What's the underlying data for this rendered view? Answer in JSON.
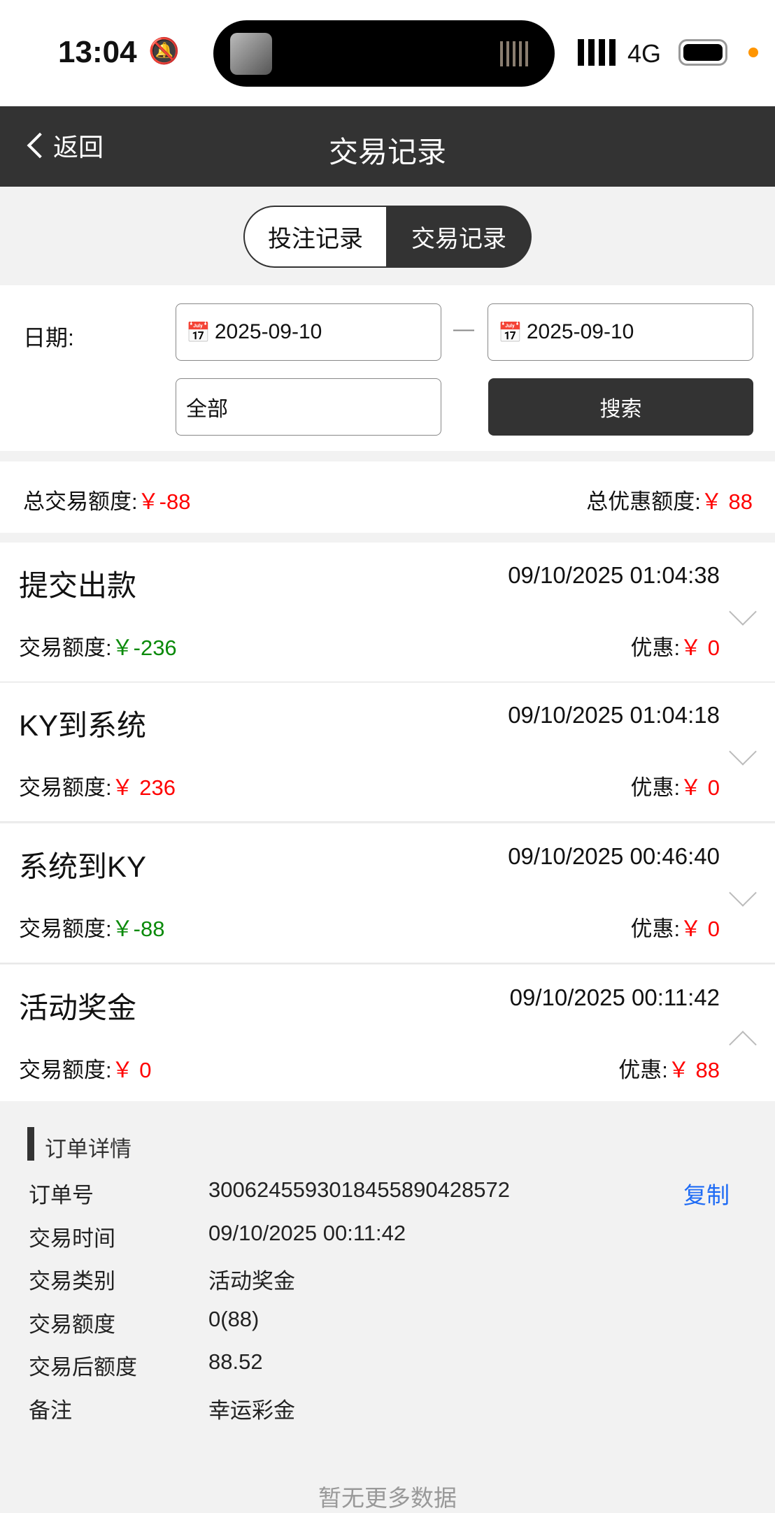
{
  "status_bar": {
    "time": "13:04",
    "network": "4G",
    "accent": "#ff9500"
  },
  "nav": {
    "back_label": "返回",
    "title": "交易记录"
  },
  "tabs": [
    {
      "label": "投注记录",
      "active": false
    },
    {
      "label": "交易记录",
      "active": true
    }
  ],
  "filter": {
    "date_label": "日期:",
    "start_date": "2025-09-10",
    "end_date": "2025-09-10",
    "separator": "—",
    "type_value": "全部",
    "search_label": "搜索"
  },
  "summary": {
    "total_label": "总交易额度:",
    "total_value": "￥-88",
    "bonus_label": "总优惠额度:",
    "bonus_value": "￥ 88"
  },
  "records": [
    {
      "title": "提交出款",
      "datetime": "09/10/2025 01:04:38",
      "amount_label": "交易额度:",
      "amount": "￥-236",
      "amount_color": "green",
      "bonus_label": "优惠:",
      "bonus": "￥ 0",
      "expanded": false
    },
    {
      "title": "KY到系统",
      "datetime": "09/10/2025 01:04:18",
      "amount_label": "交易额度:",
      "amount": "￥ 236",
      "amount_color": "red",
      "bonus_label": "优惠:",
      "bonus": "￥ 0",
      "expanded": false
    },
    {
      "title": "系统到KY",
      "datetime": "09/10/2025 00:46:40",
      "amount_label": "交易额度:",
      "amount": "￥-88",
      "amount_color": "green",
      "bonus_label": "优惠:",
      "bonus": "￥ 0",
      "expanded": false
    },
    {
      "title": "活动奖金",
      "datetime": "09/10/2025 00:11:42",
      "amount_label": "交易额度:",
      "amount": "￥ 0",
      "amount_color": "red",
      "bonus_label": "优惠:",
      "bonus": "￥ 88",
      "expanded": true
    }
  ],
  "detail": {
    "heading": "订单详情",
    "copy_label": "复制",
    "rows": [
      {
        "label": "订单号",
        "value": "3006245593018455890428572"
      },
      {
        "label": "交易时间",
        "value": "09/10/2025 00:11:42"
      },
      {
        "label": "交易类别",
        "value": "活动奖金"
      },
      {
        "label": "交易额度",
        "value": "0(88)"
      },
      {
        "label": "交易后额度",
        "value": "88.52"
      },
      {
        "label": "备注",
        "value": "幸运彩金"
      }
    ]
  },
  "footer": {
    "no_more": "暂无更多数据"
  }
}
